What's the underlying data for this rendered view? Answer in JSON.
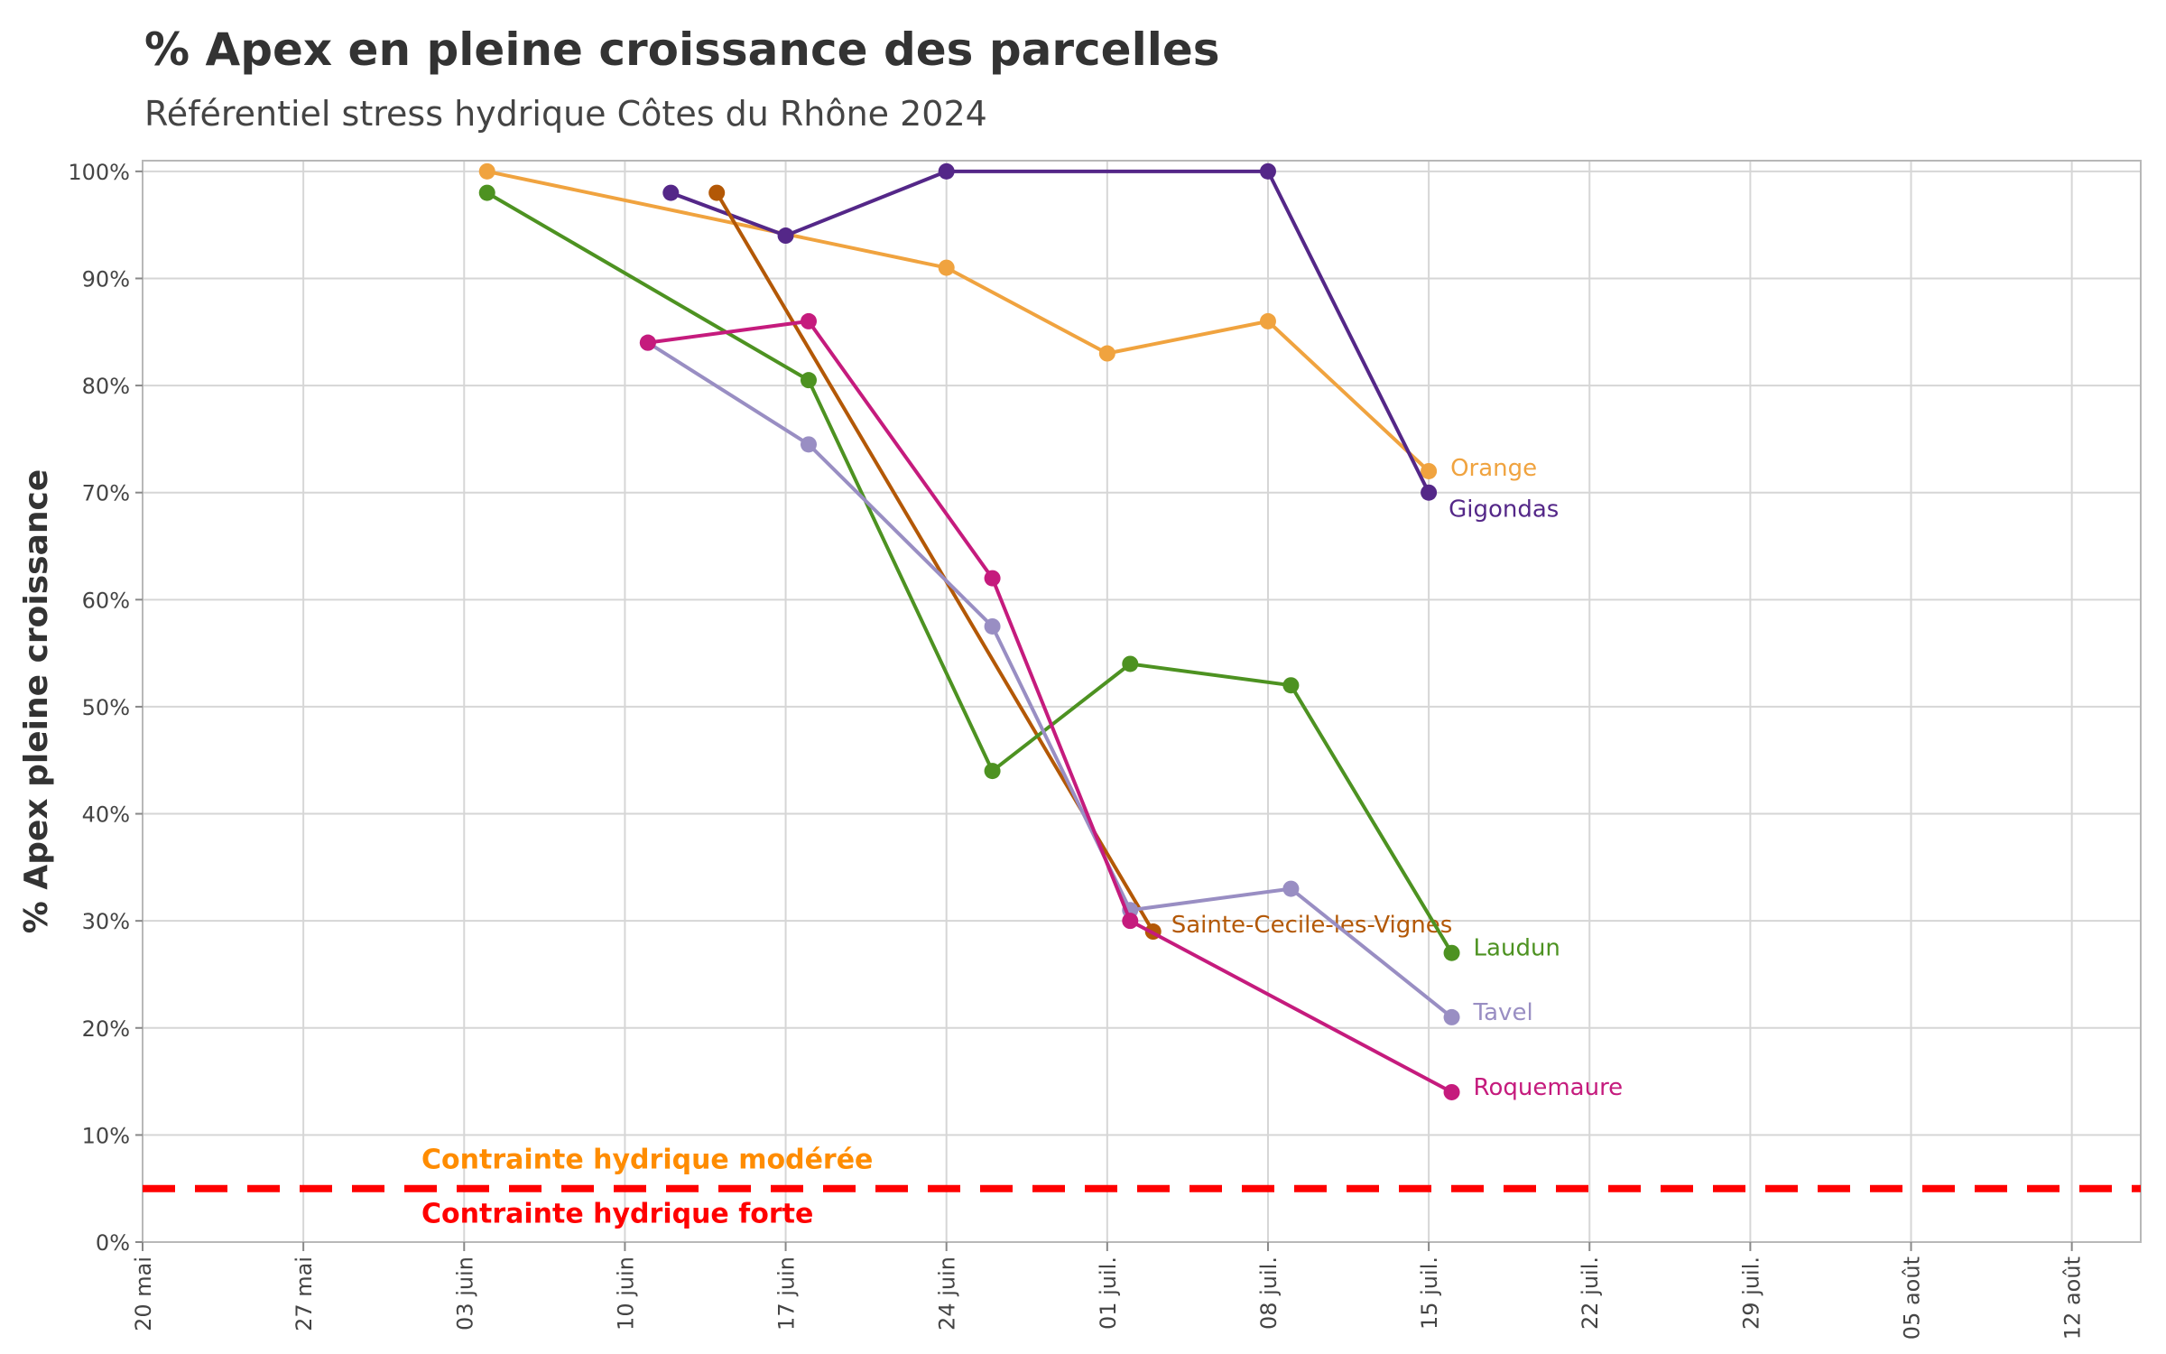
{
  "chart_data": {
    "type": "line",
    "title": "% Apex en pleine croissance des parcelles",
    "subtitle": "Référentiel stress hydrique Côtes du Rhône 2024",
    "xlabel": "",
    "ylabel": "% Apex pleine croissance",
    "xlim": [
      "2024-05-20",
      "2024-08-15"
    ],
    "ylim": [
      0,
      101
    ],
    "grid": true,
    "x_ticks": [
      {
        "date": "2024-05-20",
        "label": "20 mai"
      },
      {
        "date": "2024-05-27",
        "label": "27 mai"
      },
      {
        "date": "2024-06-03",
        "label": "03 juin"
      },
      {
        "date": "2024-06-10",
        "label": "10 juin"
      },
      {
        "date": "2024-06-17",
        "label": "17 juin"
      },
      {
        "date": "2024-06-24",
        "label": "24 juin"
      },
      {
        "date": "2024-07-01",
        "label": "01 juil."
      },
      {
        "date": "2024-07-08",
        "label": "08 juil."
      },
      {
        "date": "2024-07-15",
        "label": "15 juil."
      },
      {
        "date": "2024-07-22",
        "label": "22 juil."
      },
      {
        "date": "2024-07-29",
        "label": "29 juil."
      },
      {
        "date": "2024-08-05",
        "label": "05 août"
      },
      {
        "date": "2024-08-12",
        "label": "12 août"
      }
    ],
    "y_ticks": [
      {
        "value": 0,
        "label": "0%"
      },
      {
        "value": 10,
        "label": "10%"
      },
      {
        "value": 20,
        "label": "20%"
      },
      {
        "value": 30,
        "label": "30%"
      },
      {
        "value": 40,
        "label": "40%"
      },
      {
        "value": 50,
        "label": "50%"
      },
      {
        "value": 60,
        "label": "60%"
      },
      {
        "value": 70,
        "label": "70%"
      },
      {
        "value": 80,
        "label": "80%"
      },
      {
        "value": 90,
        "label": "90%"
      },
      {
        "value": 100,
        "label": "100%"
      }
    ],
    "series": [
      {
        "name": "Orange",
        "color": "#F0A33F",
        "x": [
          "2024-06-04",
          "2024-06-24",
          "2024-07-01",
          "2024-07-08",
          "2024-07-15"
        ],
        "y": [
          100,
          91,
          83,
          86,
          72
        ]
      },
      {
        "name": "Gigondas",
        "color": "#542788",
        "x": [
          "2024-06-12",
          "2024-06-17",
          "2024-06-24",
          "2024-07-08",
          "2024-07-15"
        ],
        "y": [
          98,
          94,
          100,
          100,
          70
        ]
      },
      {
        "name": "Sainte-Cecile-les-Vignes",
        "color": "#B35806",
        "x": [
          "2024-06-14",
          "2024-07-03"
        ],
        "y": [
          98,
          29
        ]
      },
      {
        "name": "Laudun",
        "color": "#4D9221",
        "x": [
          "2024-06-04",
          "2024-06-18",
          "2024-06-26",
          "2024-07-02",
          "2024-07-09",
          "2024-07-16"
        ],
        "y": [
          98,
          80.5,
          44,
          54,
          52,
          27
        ]
      },
      {
        "name": "Tavel",
        "color": "#998EC3",
        "x": [
          "2024-06-11",
          "2024-06-18",
          "2024-06-26",
          "2024-07-02",
          "2024-07-09",
          "2024-07-16"
        ],
        "y": [
          84,
          74.5,
          57.5,
          31,
          33,
          21
        ]
      },
      {
        "name": "Roquemaure",
        "color": "#C51B7D",
        "x": [
          "2024-06-11",
          "2024-06-18",
          "2024-06-26",
          "2024-07-02",
          "2024-07-16"
        ],
        "y": [
          84,
          86,
          62,
          30,
          14
        ]
      }
    ],
    "threshold": {
      "value": 5,
      "color": "#FF0000",
      "label_above": "Contrainte hydrique modérée",
      "label_above_color": "#FF8C00",
      "label_below": "Contrainte hydrique forte",
      "label_below_color": "#FF0000"
    }
  }
}
